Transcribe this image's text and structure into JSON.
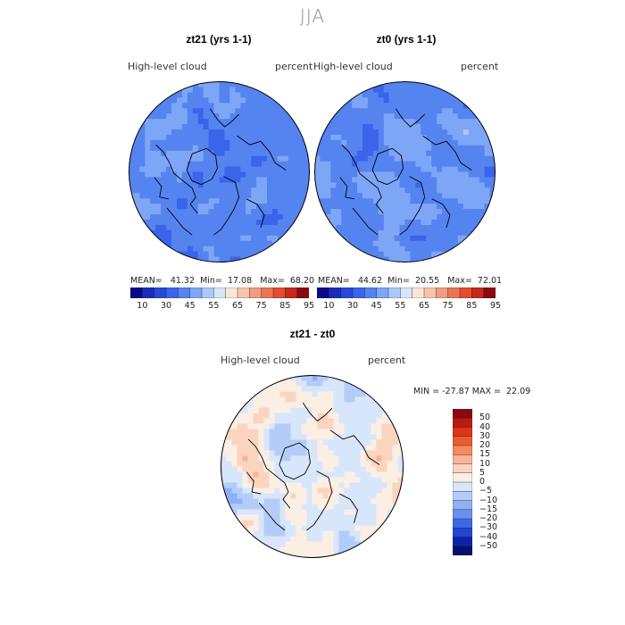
{
  "season": "JJA",
  "chart_data": [
    {
      "type": "heatmap",
      "title": "zt21 (yrs 1-1)",
      "variable": "High-level cloud",
      "units": "percent",
      "projection": "north polar stereographic",
      "stats": {
        "mean_label": "MEAN=",
        "mean": "41.32",
        "min_label": "Min=",
        "min": "17.08",
        "max_label": "Max=",
        "max": "68.20"
      },
      "colorbar_ticks": [
        "10",
        "30",
        "45",
        "55",
        "65",
        "75",
        "85",
        "95"
      ],
      "dominant_range": [
        30,
        55
      ]
    },
    {
      "type": "heatmap",
      "title": "zt0 (yrs 1-1)",
      "variable": "High-level cloud",
      "units": "percent",
      "projection": "north polar stereographic",
      "stats": {
        "mean_label": "MEAN=",
        "mean": "44.62",
        "min_label": "Min=",
        "min": "20.55",
        "max_label": "Max=",
        "max": "72.01"
      },
      "colorbar_ticks": [
        "10",
        "30",
        "45",
        "55",
        "65",
        "75",
        "85",
        "95"
      ],
      "dominant_range": [
        30,
        55
      ]
    },
    {
      "type": "heatmap",
      "title": "zt21 - zt0",
      "variable": "High-level cloud",
      "units": "percent",
      "projection": "north polar stereographic",
      "stats": {
        "min_label": "MIN =",
        "min": "-27.87",
        "max_label": "MAX =",
        "max": "22.09"
      },
      "colorbar_ticks": [
        "50",
        "40",
        "30",
        "20",
        "15",
        "10",
        "5",
        "0",
        "−5",
        "−10",
        "−15",
        "−20",
        "−30",
        "−40",
        "−50"
      ],
      "dominant_range": [
        -15,
        15
      ]
    }
  ],
  "palettes": {
    "abs": [
      "#0a0a88",
      "#1a2db8",
      "#2948da",
      "#3a64ea",
      "#5584f0",
      "#7ea6f6",
      "#aac8fa",
      "#d8e6fc",
      "#fbe6d6",
      "#f5c4ac",
      "#f09c80",
      "#ea7554",
      "#e34c30",
      "#c8271c",
      "#8a0a12"
    ],
    "diff": [
      "#8a0a12",
      "#bb1a10",
      "#dc3518",
      "#ec5a30",
      "#f58a60",
      "#f9b496",
      "#fbd4c0",
      "#fbefe4",
      "#d8e6fc",
      "#b4cdf8",
      "#8fb0f4",
      "#6a90ee",
      "#3f68e6",
      "#2245cf",
      "#0a24a8",
      "#08106e"
    ]
  }
}
